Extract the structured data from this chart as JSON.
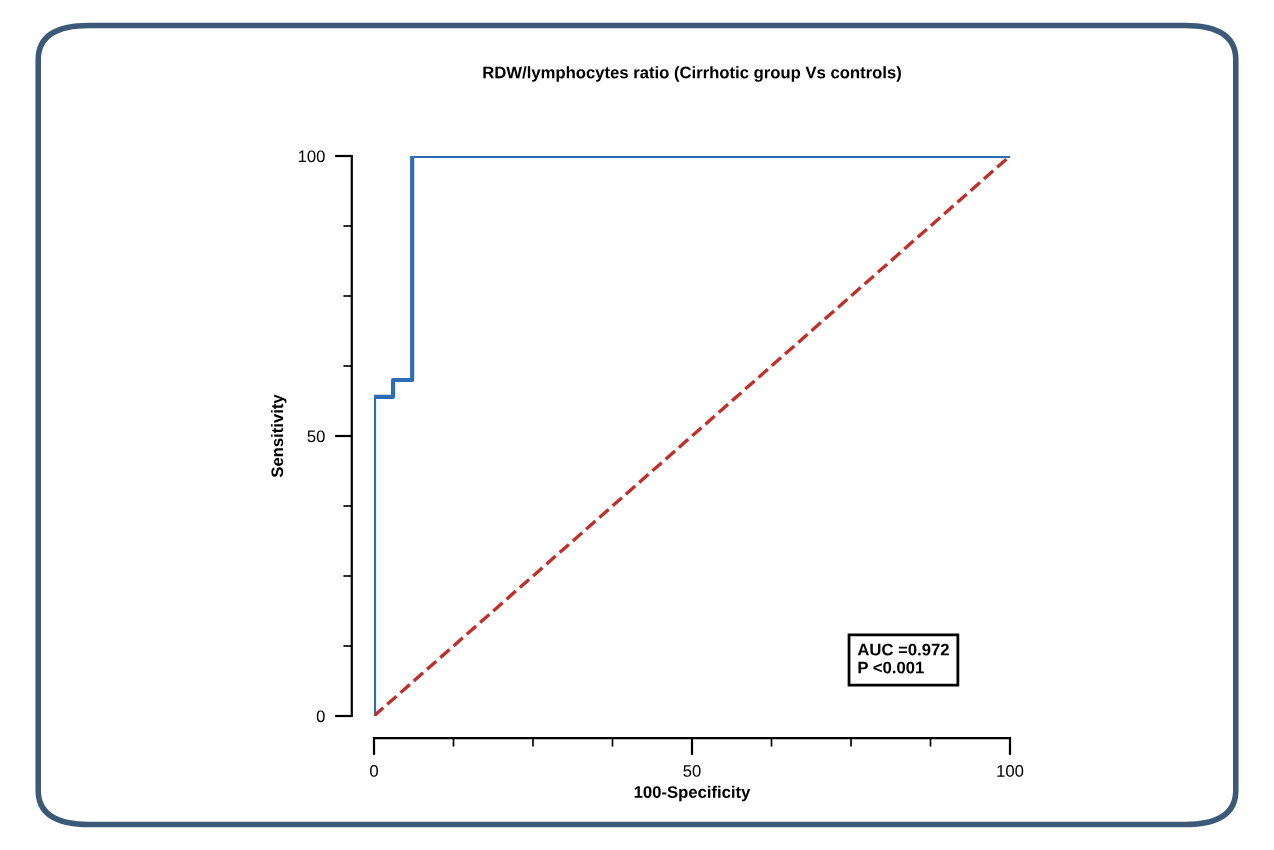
{
  "chart_data": {
    "type": "step",
    "title": "RDW/lymphocytes ratio (Cirrhotic group Vs controls)",
    "xlabel": "100-Specificity",
    "ylabel": "Sensitivity",
    "series": [
      {
        "color": "#2e6db4",
        "line_style": "solid",
        "x": [
          0,
          0,
          3,
          3,
          6,
          6,
          100
        ],
        "values": [
          0,
          57,
          57,
          60,
          60,
          100,
          100
        ]
      },
      {
        "type": "line",
        "color": "#c0302a",
        "line_style": "dashed",
        "x": [
          0,
          100
        ],
        "values": [
          0,
          100
        ]
      }
    ],
    "xlim": [
      0,
      100
    ],
    "ylim": [
      0,
      100
    ],
    "xticks": [
      0,
      50,
      100
    ],
    "yticks": [
      0,
      50,
      100
    ],
    "grid": false,
    "legend": false,
    "annotations": [
      "AUC =0.972\nP <0.001"
    ]
  }
}
